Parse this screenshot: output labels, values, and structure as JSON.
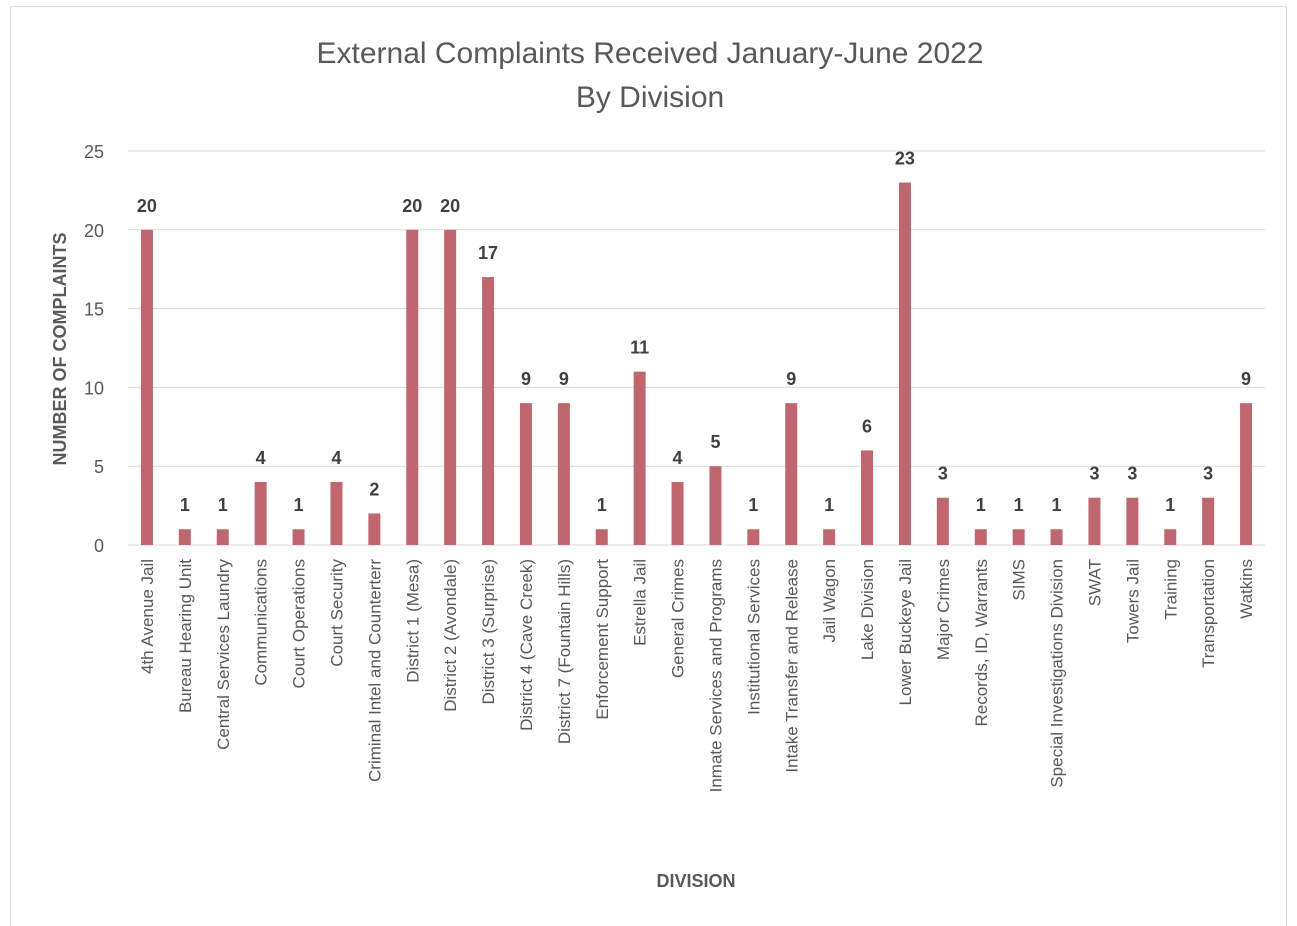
{
  "chart_data": {
    "type": "bar",
    "title": "External Complaints Received January-June 2022",
    "subtitle": "By Division",
    "xlabel": "DIVISION",
    "ylabel": "NUMBER OF COMPLAINTS",
    "ylim": [
      0,
      25
    ],
    "yticks": [
      0,
      5,
      10,
      15,
      20,
      25
    ],
    "grid": true,
    "legend": "none",
    "bar_color": "#c0666f",
    "categories": [
      "4th Avenue Jail",
      "Bureau Hearing Unit",
      "Central Services Laundry",
      "Communications",
      "Court Operations",
      "Court Security",
      "Criminal Intel and Counterterr",
      "District 1 (Mesa)",
      "District 2 (Avondale)",
      "District 3 (Surprise)",
      "District 4 (Cave Creek)",
      "District 7 (Fountain Hills)",
      "Enforcement Support",
      "Estrella Jail",
      "General Crimes",
      "Inmate Services and Programs",
      "Institutional Services",
      "Intake Transfer and Release",
      "Jail Wagon",
      "Lake Division",
      "Lower Buckeye Jail",
      "Major Crimes",
      "Records, ID, Warrants",
      "SIMS",
      "Special Investigations Division",
      "SWAT",
      "Towers Jail",
      "Training",
      "Transportation",
      "Watkins"
    ],
    "values": [
      20,
      1,
      1,
      4,
      1,
      4,
      2,
      20,
      20,
      17,
      9,
      9,
      1,
      11,
      4,
      5,
      1,
      9,
      1,
      6,
      23,
      3,
      1,
      1,
      1,
      3,
      3,
      1,
      3,
      9
    ]
  }
}
